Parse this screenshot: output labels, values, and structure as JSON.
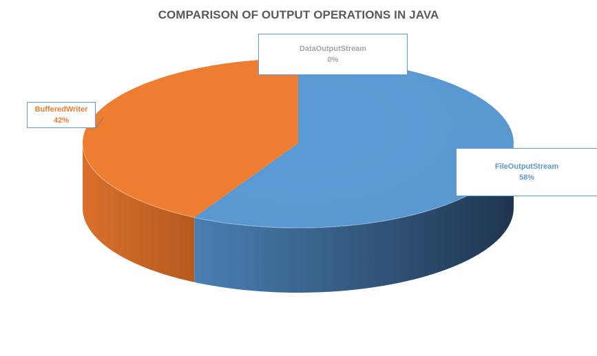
{
  "chart_data": {
    "type": "pie",
    "title": "COMPARISON OF OUTPUT OPERATIONS IN JAVA",
    "slices": [
      {
        "name": "FileOutputStream",
        "value": 58,
        "label": "58%",
        "color": "#5b9bd5"
      },
      {
        "name": "BufferedWriter",
        "value": 42,
        "label": "42%",
        "color": "#ed7d31"
      },
      {
        "name": "DataOutputStream",
        "value": 0,
        "label": "0%",
        "color": "#a5a5a5"
      }
    ],
    "style": "3d",
    "legend": "none",
    "data_labels": "callouts"
  },
  "label_colors": {
    "FileOutputStream": "#5b9bd5",
    "BufferedWriter": "#ed7d31",
    "DataOutputStream": "#a6a6a6"
  }
}
